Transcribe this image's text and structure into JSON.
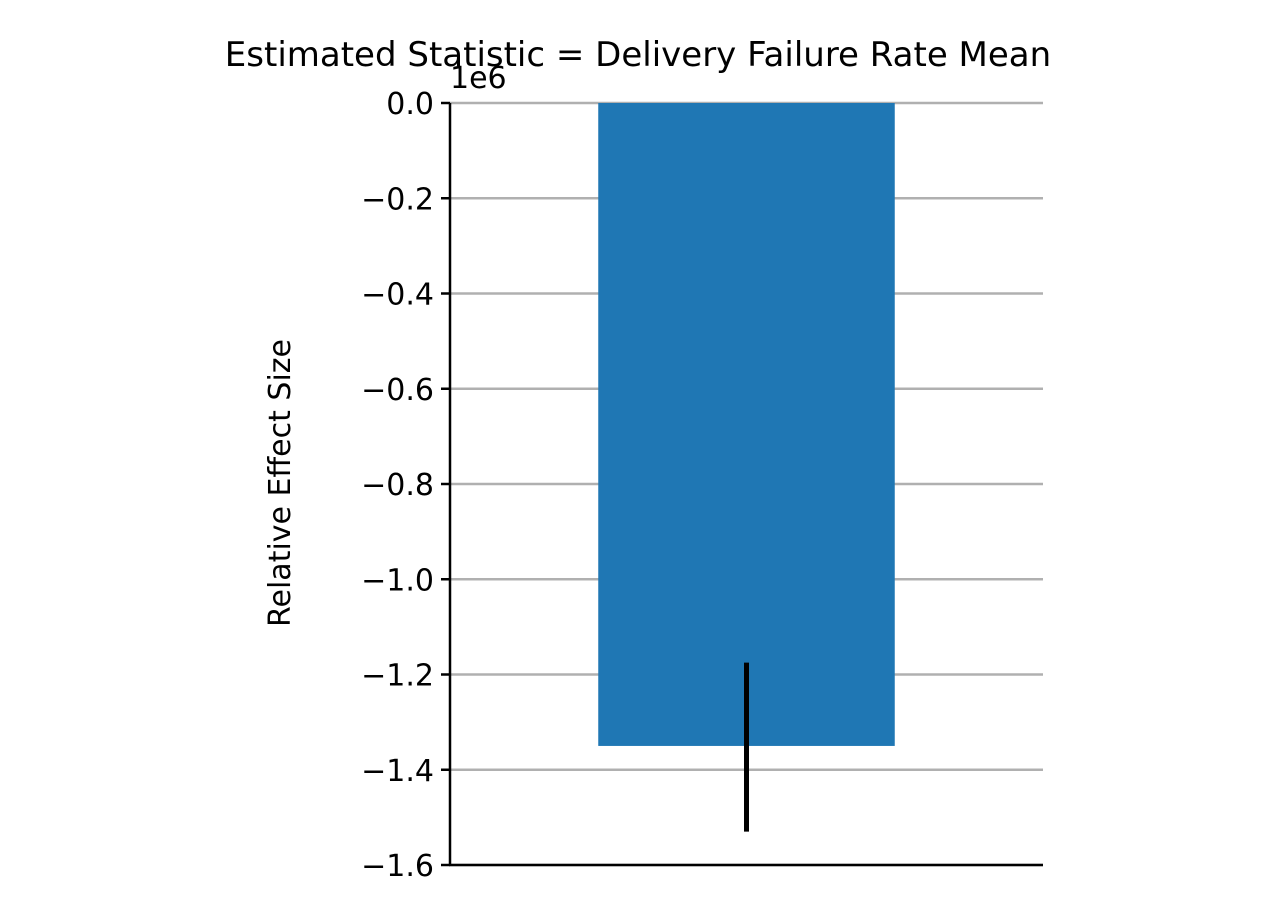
{
  "chart_data": {
    "type": "bar",
    "title": "Estimated Statistic = Delivery Failure Rate Mean",
    "xlabel": "",
    "ylabel": "Relative Effect Size",
    "scale_label": "1e6",
    "scale_factor": 1000000,
    "ylim": [
      -1600000,
      0
    ],
    "yticks": [
      0,
      -200000,
      -400000,
      -600000,
      -800000,
      -1000000,
      -1200000,
      -1400000,
      -1600000
    ],
    "ytick_labels": [
      "0.0",
      "−0.2",
      "−0.4",
      "−0.6",
      "−0.8",
      "−1.0",
      "−1.2",
      "−1.4",
      "−1.6"
    ],
    "categories": [
      ""
    ],
    "values": [
      -1350000
    ],
    "error_bars": [
      {
        "low": -1530000,
        "high": -1175000
      }
    ],
    "grid": "horizontal",
    "legend": "none",
    "colors": {
      "bar": "#1f77b4",
      "grid": "#b0b0b0",
      "axis": "#000000",
      "error_bar": "#000000"
    }
  }
}
